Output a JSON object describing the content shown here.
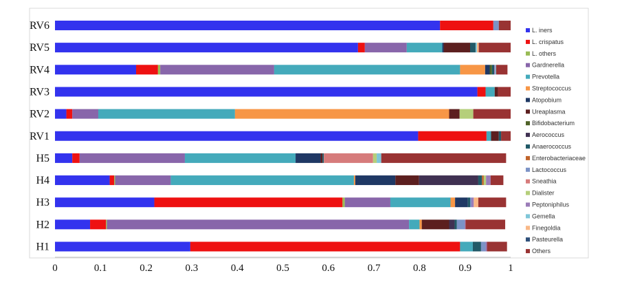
{
  "chart_data": {
    "type": "bar",
    "orientation": "horizontal",
    "stacked": true,
    "xlim": [
      0,
      1
    ],
    "x_ticks": [
      "0",
      "0.1",
      "0.2",
      "0.3",
      "0.4",
      "0.5",
      "0.6",
      "0.7",
      "0.8",
      "0.9",
      "1"
    ],
    "categories": [
      "RV6",
      "RV5",
      "RV4",
      "RV3",
      "RV2",
      "RV1",
      "H5",
      "H4",
      "H3",
      "H2",
      "H1"
    ],
    "legend_position": "right",
    "grid": false,
    "series": [
      {
        "name": "L. iners",
        "color": "#3333ee",
        "values": [
          0.845,
          0.665,
          0.178,
          0.927,
          0.025,
          0.797,
          0.038,
          0.12,
          0.218,
          0.077,
          0.297
        ]
      },
      {
        "name": "L. crispatus",
        "color": "#ee1111",
        "values": [
          0.117,
          0.015,
          0.048,
          0.018,
          0.013,
          0.15,
          0.016,
          0.01,
          0.413,
          0.035,
          0.592
        ]
      },
      {
        "name": "L. others",
        "color": "#99bb55",
        "values": [
          0,
          0,
          0.005,
          0,
          0,
          0,
          0,
          0.002,
          0.005,
          0.002,
          0
        ]
      },
      {
        "name": "Gardnerella",
        "color": "#8866aa",
        "values": [
          0,
          0.092,
          0.25,
          0,
          0.057,
          0,
          0.231,
          0.122,
          0.1,
          0.663,
          0
        ]
      },
      {
        "name": "Prevotella",
        "color": "#44aabb",
        "values": [
          0,
          0.078,
          0.408,
          0.02,
          0.3,
          0.01,
          0.243,
          0.402,
          0.132,
          0.023,
          0.028
        ]
      },
      {
        "name": "Streptococcus",
        "color": "#f79646",
        "values": [
          0,
          0,
          0.055,
          0,
          0.47,
          0,
          0,
          0.003,
          0.01,
          0.005,
          0
        ]
      },
      {
        "name": "Atopobium",
        "color": "#1f3864",
        "values": [
          0,
          0.003,
          0.01,
          0,
          0,
          0,
          0.055,
          0.088,
          0.028,
          0,
          0
        ]
      },
      {
        "name": "Ureaplasma",
        "color": "#5c1f1f",
        "values": [
          0,
          0.058,
          0,
          0.007,
          0.023,
          0.017,
          0.004,
          0.052,
          0,
          0.06,
          0
        ]
      },
      {
        "name": "Bifidobacterium",
        "color": "#4f6228",
        "values": [
          0,
          0,
          0.005,
          0,
          0,
          0,
          0,
          0,
          0,
          0,
          0
        ]
      },
      {
        "name": "Aerococcus",
        "color": "#403152",
        "values": [
          0,
          0,
          0,
          0,
          0,
          0,
          0,
          0.13,
          0,
          0.012,
          0
        ]
      },
      {
        "name": "Anaerococcus",
        "color": "#215967",
        "values": [
          0,
          0.012,
          0.005,
          0,
          0,
          0.005,
          0.003,
          0.008,
          0.005,
          0.005,
          0.018
        ]
      },
      {
        "name": "Enterobacteriaceae",
        "color": "#c0642b",
        "values": [
          0,
          0,
          0,
          0,
          0,
          0,
          0,
          0.004,
          0,
          0,
          0
        ]
      },
      {
        "name": "Lactococcus",
        "color": "#7c93c6",
        "values": [
          0.012,
          0,
          0,
          0,
          0,
          0,
          0,
          0,
          0.003,
          0.017,
          0.01
        ]
      },
      {
        "name": "Sneathia",
        "color": "#d67b7b",
        "values": [
          0,
          0,
          0,
          0,
          0,
          0,
          0.108,
          0,
          0,
          0,
          0
        ]
      },
      {
        "name": "Dialister",
        "color": "#b5cf7a",
        "values": [
          0,
          0,
          0,
          0,
          0.03,
          0,
          0.008,
          0.005,
          0,
          0,
          0
        ]
      },
      {
        "name": "Peptoniphilus",
        "color": "#9b7cb8",
        "values": [
          0,
          0,
          0.002,
          0,
          0,
          0,
          0,
          0.01,
          0.005,
          0.002,
          0.003
        ]
      },
      {
        "name": "Gemella",
        "color": "#7fc6d8",
        "values": [
          0,
          0.003,
          0.002,
          0,
          0,
          0,
          0.01,
          0,
          0,
          0,
          0
        ]
      },
      {
        "name": "Finegoldia",
        "color": "#f9b887",
        "values": [
          0,
          0.004,
          0,
          0,
          0,
          0,
          0,
          0,
          0.01,
          0,
          0
        ]
      },
      {
        "name": "Pasteurella",
        "color": "#2e4f7a",
        "values": [
          0,
          0,
          0,
          0,
          0,
          0,
          0,
          0,
          0,
          0,
          0
        ]
      },
      {
        "name": "Others",
        "color": "#993333",
        "values": [
          0.026,
          0.07,
          0.025,
          0.028,
          0.082,
          0.021,
          0.274,
          0.028,
          0.061,
          0.087,
          0.044
        ]
      }
    ]
  }
}
